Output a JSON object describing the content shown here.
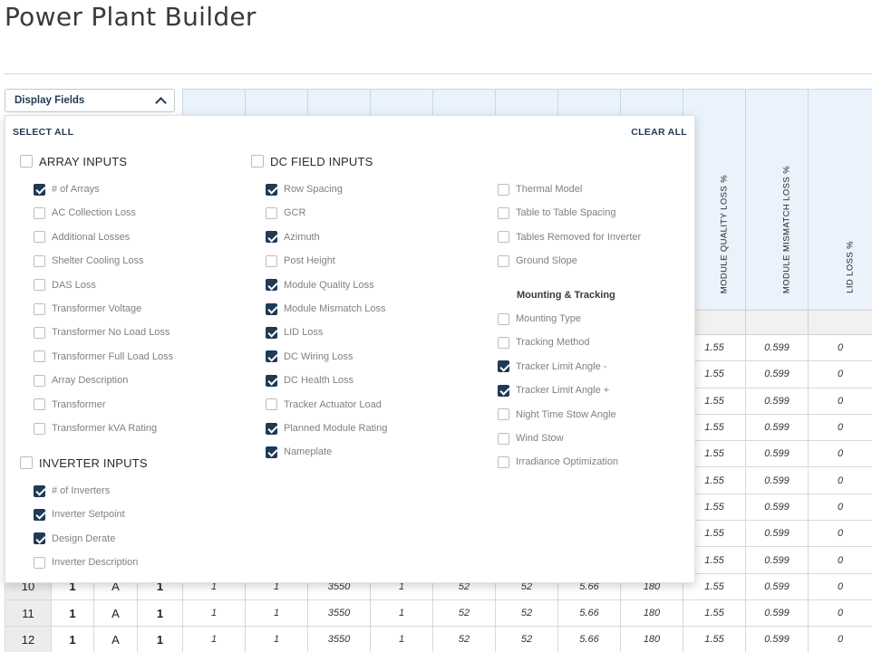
{
  "page": {
    "title": "Power Plant Builder"
  },
  "dropdown": {
    "label": "Display Fields",
    "select_all": "SELECT ALL",
    "clear_all": "CLEAR ALL"
  },
  "groups": [
    {
      "title": "ARRAY INPUTS",
      "checked": false,
      "items": [
        {
          "label": "# of Arrays",
          "checked": true
        },
        {
          "label": "AC Collection Loss",
          "checked": false
        },
        {
          "label": "Additional Losses",
          "checked": false
        },
        {
          "label": "Shelter Cooling Loss",
          "checked": false
        },
        {
          "label": "DAS Loss",
          "checked": false
        },
        {
          "label": "Transformer Voltage",
          "checked": false
        },
        {
          "label": "Transformer No Load Loss",
          "checked": false
        },
        {
          "label": "Transformer Full Load Loss",
          "checked": false
        },
        {
          "label": "Array Description",
          "checked": false
        },
        {
          "label": "Transformer",
          "checked": false
        },
        {
          "label": "Transformer kVA Rating",
          "checked": false
        }
      ]
    },
    {
      "title": "INVERTER INPUTS",
      "checked": false,
      "items": [
        {
          "label": "# of Inverters",
          "checked": true
        },
        {
          "label": "Inverter Setpoint",
          "checked": true
        },
        {
          "label": "Design Derate",
          "checked": true
        },
        {
          "label": "Inverter Description",
          "checked": false
        }
      ]
    },
    {
      "title": "DC FIELD INPUTS",
      "checked": false,
      "items": [
        {
          "label": "Row Spacing",
          "checked": true
        },
        {
          "label": "GCR",
          "checked": false
        },
        {
          "label": "Azimuth",
          "checked": true
        },
        {
          "label": "Post Height",
          "checked": false
        },
        {
          "label": "Module Quality Loss",
          "checked": true
        },
        {
          "label": "Module Mismatch Loss",
          "checked": true
        },
        {
          "label": "LID Loss",
          "checked": true
        },
        {
          "label": "DC Wiring Loss",
          "checked": true
        },
        {
          "label": "DC Health Loss",
          "checked": true
        },
        {
          "label": "Tracker Actuator Load",
          "checked": false
        },
        {
          "label": "Planned Module Rating",
          "checked": true
        },
        {
          "label": "Nameplate",
          "checked": true
        }
      ]
    }
  ],
  "dc_extra_items": [
    {
      "label": "Thermal Model",
      "checked": false
    },
    {
      "label": "Table to Table Spacing",
      "checked": false
    },
    {
      "label": "Tables Removed for Inverter",
      "checked": false
    },
    {
      "label": "Ground Slope",
      "checked": false
    }
  ],
  "mounting": {
    "title": "Mounting & Tracking",
    "items": [
      {
        "label": "Mounting Type",
        "checked": false
      },
      {
        "label": "Tracking Method",
        "checked": false
      },
      {
        "label": "Tracker Limit Angle -",
        "checked": true
      },
      {
        "label": "Tracker Limit Angle +",
        "checked": true
      },
      {
        "label": "Night Time Stow Angle",
        "checked": false
      },
      {
        "label": "Wind Stow",
        "checked": false
      },
      {
        "label": "Irradiance Optimization",
        "checked": false
      }
    ]
  },
  "table": {
    "visible_headers": [
      "MODULE QUALITY LOSS %",
      "MODULE MISMATCH LOSS %",
      "LID LOSS %"
    ],
    "right_rows": [
      [
        "1.55",
        "0.599",
        "0"
      ],
      [
        "1.55",
        "0.599",
        "0"
      ],
      [
        "1.55",
        "0.599",
        "0"
      ],
      [
        "1.55",
        "0.599",
        "0"
      ],
      [
        "1.55",
        "0.599",
        "0"
      ],
      [
        "1.55",
        "0.599",
        "0"
      ],
      [
        "1.55",
        "0.599",
        "0"
      ],
      [
        "1.55",
        "0.599",
        "0"
      ],
      [
        "1.55",
        "0.599",
        "0"
      ]
    ],
    "full_rows": [
      [
        "10",
        "1",
        "A",
        "1",
        "1",
        "1",
        "3550",
        "1",
        "52",
        "52",
        "5.66",
        "180",
        "1.55",
        "0.599",
        "0"
      ],
      [
        "11",
        "1",
        "A",
        "1",
        "1",
        "1",
        "3550",
        "1",
        "52",
        "52",
        "5.66",
        "180",
        "1.55",
        "0.599",
        "0"
      ],
      [
        "12",
        "1",
        "A",
        "1",
        "1",
        "1",
        "3550",
        "1",
        "52",
        "52",
        "5.66",
        "180",
        "1.55",
        "0.599",
        "0"
      ]
    ]
  }
}
